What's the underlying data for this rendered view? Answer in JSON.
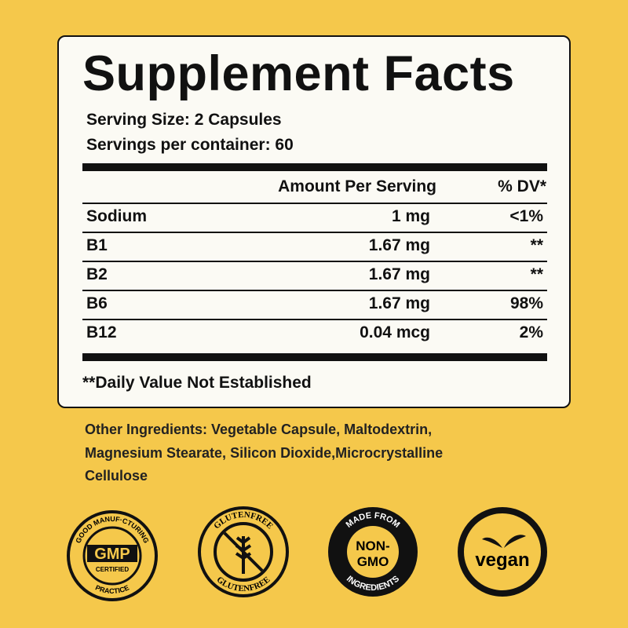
{
  "header": {
    "title": "Supplement Facts",
    "serving_size": "Serving Size: 2 Capsules",
    "servings_per_container": "Servings per container: 60"
  },
  "table": {
    "columns": [
      "Amount Per Serving",
      "% DV*"
    ],
    "rows": [
      [
        "Sodium",
        "1 mg",
        "<1%"
      ],
      [
        "B1",
        "1.67 mg",
        "**"
      ],
      [
        "B2",
        "1.67 mg",
        "**"
      ],
      [
        "B6",
        "1.67 mg",
        "98%"
      ],
      [
        "B12",
        "0.04 mcg",
        "2%"
      ]
    ]
  },
  "footnote": "**Daily Value Not Established",
  "other_ingredients": [
    "Other Ingredients: Vegetable Capsule, Maltodextrin,",
    "Magnesium Stearate, Silicon Dioxide,Microcrystalline",
    "Cellulose"
  ],
  "badges": [
    {
      "top": "GOOD MANUF·CTURING",
      "center": "GMP",
      "sub": "CERTIFIED",
      "bottom": "PRACTICE"
    },
    {
      "top": "GLUTENFREE",
      "bottom": "GLUTENFREE"
    },
    {
      "top": "MADE FROM",
      "center": "NON-",
      "sub": "GMO",
      "bottom": "INGREDIENTS"
    },
    {
      "center": "vegan"
    }
  ]
}
